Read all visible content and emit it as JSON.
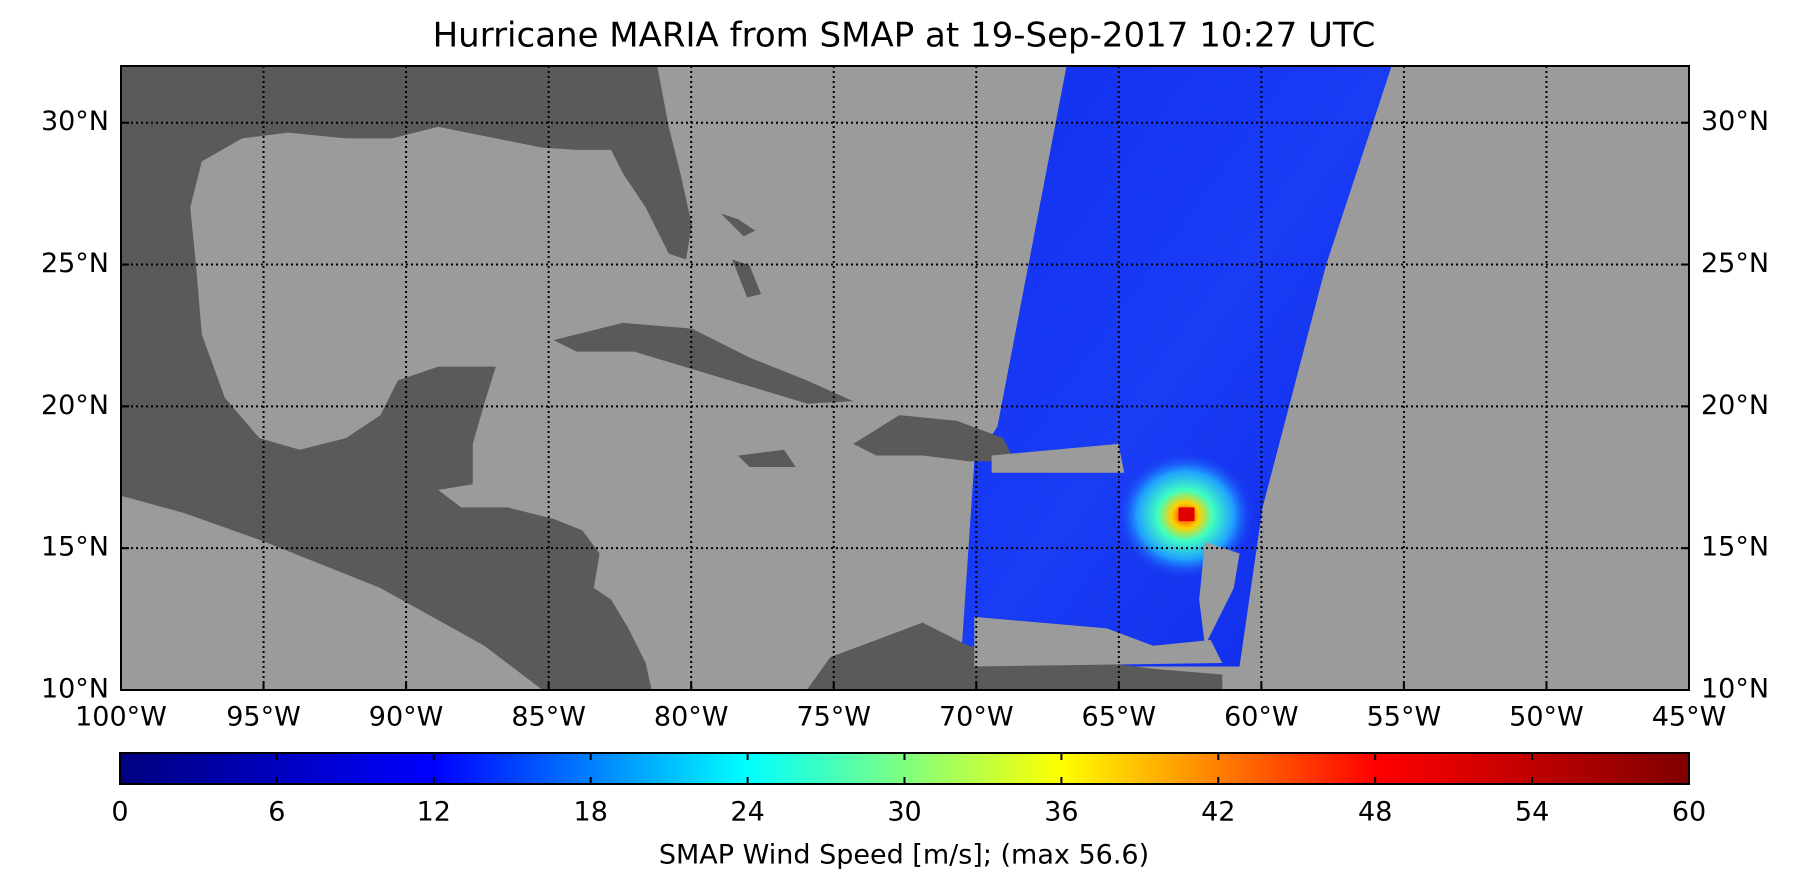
{
  "title": "Hurricane MARIA from SMAP at 19-Sep-2017 10:27 UTC",
  "map": {
    "xlim": [
      -100,
      -45
    ],
    "ylim": [
      10,
      32
    ],
    "xticks": [
      {
        "value": -100,
        "label": "100°W"
      },
      {
        "value": -95,
        "label": "95°W"
      },
      {
        "value": -90,
        "label": "90°W"
      },
      {
        "value": -85,
        "label": "85°W"
      },
      {
        "value": -80,
        "label": "80°W"
      },
      {
        "value": -75,
        "label": "75°W"
      },
      {
        "value": -70,
        "label": "70°W"
      },
      {
        "value": -65,
        "label": "65°W"
      },
      {
        "value": -60,
        "label": "60°W"
      },
      {
        "value": -55,
        "label": "55°W"
      },
      {
        "value": -50,
        "label": "50°W"
      },
      {
        "value": -45,
        "label": "45°W"
      }
    ],
    "yticks": [
      {
        "value": 10,
        "label": "10°N"
      },
      {
        "value": 15,
        "label": "15°N"
      },
      {
        "value": 20,
        "label": "20°N"
      },
      {
        "value": 25,
        "label": "25°N"
      },
      {
        "value": 30,
        "label": "30°N"
      }
    ],
    "grid": true
  },
  "colorbar": {
    "lim": [
      0,
      60
    ],
    "ticks": [
      0,
      6,
      12,
      18,
      24,
      30,
      36,
      42,
      48,
      54,
      60
    ],
    "label": "SMAP Wind Speed [m/s]; (max 56.6)",
    "colormap": [
      "#00007f",
      "#0000ff",
      "#00ffff",
      "#ffff00",
      "#ff0000",
      "#7f0000"
    ]
  }
}
